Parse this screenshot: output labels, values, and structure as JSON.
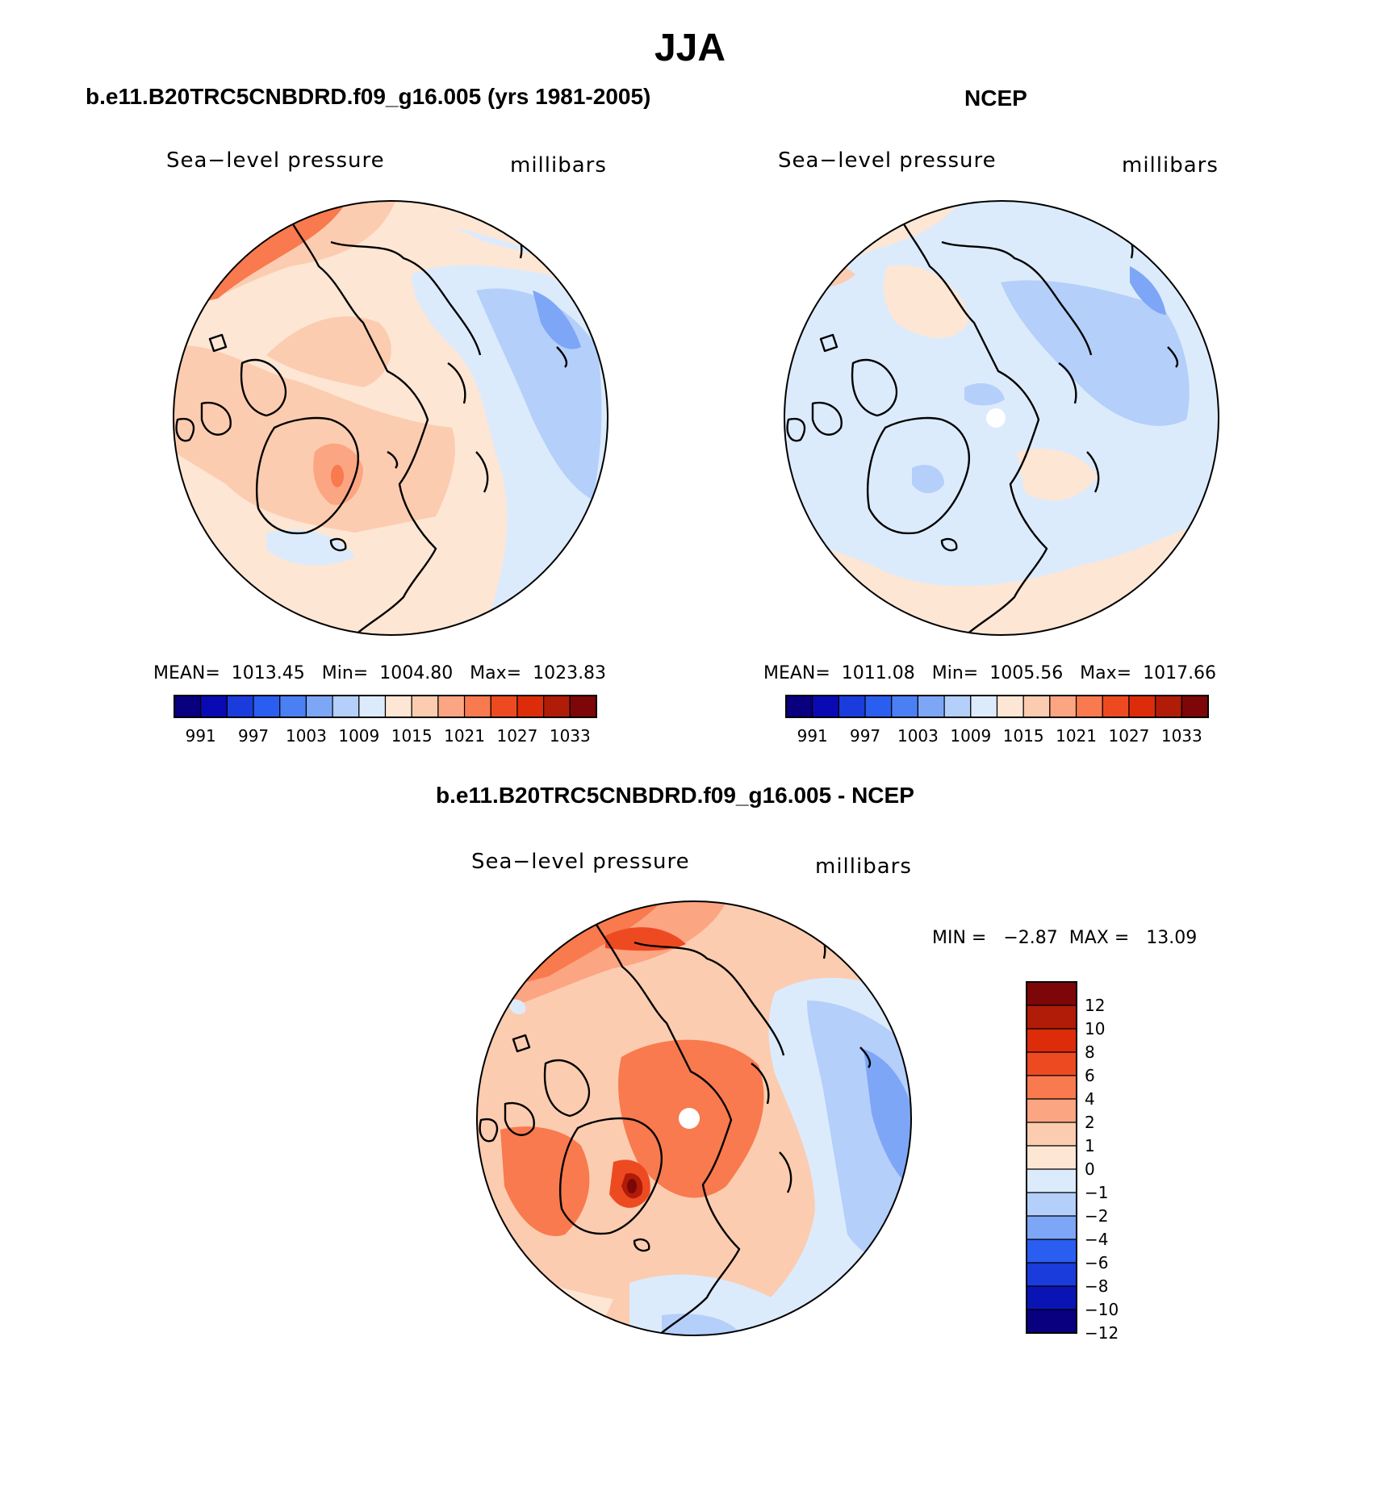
{
  "title": "JJA",
  "colors": {
    "abs_palette": [
      "#08007e",
      "#0a0ab4",
      "#1a3cdc",
      "#2a5ef0",
      "#4a80f4",
      "#7ea6f6",
      "#b4cffa",
      "#dcebfc",
      "#fde6d4",
      "#fcccb0",
      "#fca582",
      "#f87a4e",
      "#ee4a22",
      "#dc2c0a",
      "#b01c08",
      "#7c0608"
    ],
    "diff_palette": [
      "#08007e",
      "#0a14b4",
      "#1a3cdc",
      "#2a5ef0",
      "#7ea6f6",
      "#b4cffa",
      "#dcebfc",
      "#fde6d4",
      "#fcccb0",
      "#fca582",
      "#f87a4e",
      "#ee4a22",
      "#dc2c0a",
      "#b01c08",
      "#7c0608"
    ]
  },
  "chart_data": [
    {
      "type": "heatmap",
      "projection": "north-polar-stereographic",
      "title": "b.e11.B20TRC5CNBDRD.f09_g16.005 (yrs 1981-2005)",
      "variable": "Sea−level pressure",
      "units": "millibars",
      "stats": {
        "mean": "1013.45",
        "min": "1004.80",
        "max": "1023.83"
      },
      "stats_text": "MEAN=  1013.45   Min=  1004.80   Max=  1023.83",
      "colorbar_levels": [
        991,
        994,
        997,
        1000,
        1003,
        1006,
        1009,
        1012,
        1015,
        1018,
        1021,
        1024,
        1027,
        1030,
        1033
      ],
      "colorbar_labels": [
        "991",
        "997",
        "1003",
        "1009",
        "1015",
        "1021",
        "1027",
        "1033"
      ],
      "colorbar_orientation": "horizontal"
    },
    {
      "type": "heatmap",
      "projection": "north-polar-stereographic",
      "title": "NCEP",
      "variable": "Sea−level pressure",
      "units": "millibars",
      "stats": {
        "mean": "1011.08",
        "min": "1005.56",
        "max": "1017.66"
      },
      "stats_text": "MEAN=  1011.08   Min=  1005.56   Max=  1017.66",
      "colorbar_levels": [
        991,
        994,
        997,
        1000,
        1003,
        1006,
        1009,
        1012,
        1015,
        1018,
        1021,
        1024,
        1027,
        1030,
        1033
      ],
      "colorbar_labels": [
        "991",
        "997",
        "1003",
        "1009",
        "1015",
        "1021",
        "1027",
        "1033"
      ],
      "colorbar_orientation": "horizontal"
    },
    {
      "type": "heatmap",
      "projection": "north-polar-stereographic",
      "title": "b.e11.B20TRC5CNBDRD.f09_g16.005 - NCEP",
      "variable": "Sea−level pressure",
      "units": "millibars",
      "stats": {
        "min": "−2.87",
        "max": "13.09"
      },
      "stats_text": "MIN =   −2.87  MAX =   13.09",
      "colorbar_levels": [
        "12",
        "10",
        "8",
        "6",
        "4",
        "2",
        "1",
        "0",
        "−1",
        "−2",
        "−4",
        "−6",
        "−8",
        "−10",
        "−12"
      ],
      "colorbar_orientation": "vertical"
    }
  ]
}
